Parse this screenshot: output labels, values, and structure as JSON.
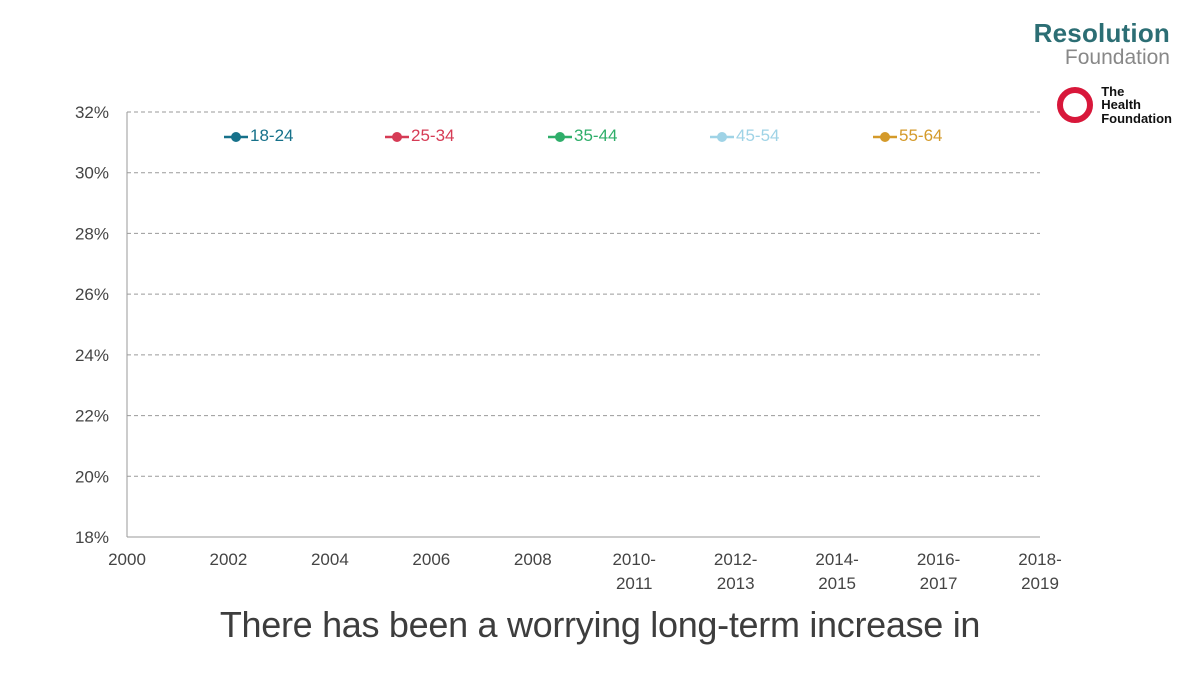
{
  "logos": {
    "resolution_foundation": {
      "line1": "Resolution",
      "line2": "Foundation"
    },
    "health_foundation": {
      "line1": "The",
      "line2": "Health",
      "line3": "Foundation"
    }
  },
  "caption": "There has been a worrying long-term increase in",
  "chart_data": {
    "type": "line",
    "title": "",
    "xlabel": "",
    "ylabel": "",
    "ylim": [
      18,
      32
    ],
    "yticks": [
      "18%",
      "20%",
      "22%",
      "24%",
      "26%",
      "28%",
      "30%",
      "32%"
    ],
    "xticks": [
      [
        "2000"
      ],
      [
        "2002"
      ],
      [
        "2004"
      ],
      [
        "2006"
      ],
      [
        "2008"
      ],
      [
        "2010-",
        "2011"
      ],
      [
        "2012-",
        "2013"
      ],
      [
        "2014-",
        "2015"
      ],
      [
        "2016-",
        "2017"
      ],
      [
        "2018-",
        "2019"
      ]
    ],
    "grid": true,
    "legend_position": "top",
    "series": [
      {
        "name": "18-24",
        "color": "#16718a",
        "values": []
      },
      {
        "name": "25-34",
        "color": "#d63b55",
        "values": []
      },
      {
        "name": "35-44",
        "color": "#2fae6a",
        "values": []
      },
      {
        "name": "45-54",
        "color": "#9fd3e6",
        "values": []
      },
      {
        "name": "55-64",
        "color": "#d49a2a",
        "values": []
      }
    ]
  }
}
